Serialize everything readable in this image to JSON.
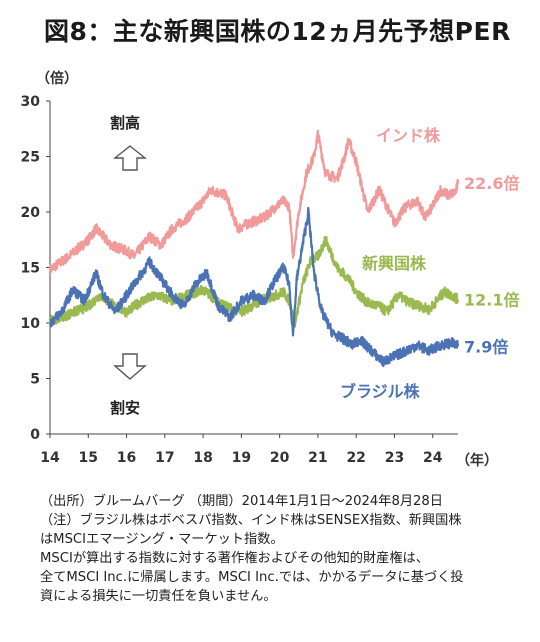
{
  "title": "図8：主な新興国株の12ヵ月先予想PER",
  "ylabel": "（倍）",
  "xunit": "（年）",
  "annotations": {
    "high": "割高",
    "low": "割安"
  },
  "notes": [
    "（出所）ブルームバーグ （期間）2014年1月1日～2024年8月28日",
    "（注）ブラジル株はボベスパ指数、インド株はSENSEX指数、新興国株",
    "はMSCIエマージング・マーケット指数。",
    "MSCIが算出する指数に対する著作権およびその他知的財産権は、",
    "全てMSCI Inc.に帰属します。MSCI Inc.では、かかるデータに基づく投",
    "資による損失に一切責任を負いません。"
  ],
  "chart_data": {
    "type": "line",
    "title": "図8：主な新興国株の12ヵ月先予想PER",
    "ylabel": "（倍）",
    "xlabel": "（年）",
    "ylim": [
      0,
      30
    ],
    "xlim": [
      2014.0,
      2024.66
    ],
    "y_ticks": [
      "0",
      "5",
      "10",
      "15",
      "20",
      "25",
      "30"
    ],
    "x_ticks": [
      "14",
      "15",
      "16",
      "17",
      "18",
      "19",
      "20",
      "21",
      "22",
      "23",
      "24"
    ],
    "grid": false,
    "series": [
      {
        "name": "インド株",
        "end_label": "22.6倍",
        "color": "#f09a9a",
        "x": [
          2014.0,
          2014.5,
          2015.0,
          2015.2,
          2015.6,
          2016.0,
          2016.2,
          2016.6,
          2016.9,
          2017.2,
          2017.6,
          2018.0,
          2018.2,
          2018.6,
          2018.9,
          2019.2,
          2019.6,
          2019.9,
          2020.1,
          2020.25,
          2020.35,
          2020.5,
          2020.7,
          2020.9,
          2021.0,
          2021.2,
          2021.5,
          2021.7,
          2021.8,
          2022.0,
          2022.3,
          2022.6,
          2022.8,
          2023.0,
          2023.3,
          2023.6,
          2023.8,
          2024.0,
          2024.2,
          2024.4,
          2024.6,
          2024.66
        ],
        "y": [
          14.8,
          16.0,
          17.5,
          18.5,
          17.0,
          16.5,
          16.0,
          17.8,
          17.0,
          18.5,
          19.5,
          21.0,
          22.0,
          21.5,
          18.5,
          19.0,
          19.5,
          20.5,
          21.0,
          20.5,
          16.0,
          20.0,
          23.5,
          25.0,
          27.0,
          23.5,
          23.0,
          25.0,
          26.5,
          24.5,
          20.0,
          22.0,
          20.5,
          19.0,
          20.5,
          21.0,
          19.5,
          20.5,
          22.0,
          21.5,
          21.8,
          22.6
        ]
      },
      {
        "name": "新興国株",
        "end_label": "12.1倍",
        "color": "#9ab94e",
        "x": [
          2014.0,
          2014.5,
          2015.0,
          2015.3,
          2015.7,
          2016.0,
          2016.4,
          2016.8,
          2017.2,
          2017.6,
          2018.0,
          2018.3,
          2018.7,
          2019.0,
          2019.5,
          2019.9,
          2020.1,
          2020.25,
          2020.4,
          2020.6,
          2020.8,
          2021.0,
          2021.2,
          2021.5,
          2021.8,
          2022.0,
          2022.3,
          2022.6,
          2022.8,
          2023.1,
          2023.4,
          2023.7,
          2023.9,
          2024.1,
          2024.3,
          2024.5,
          2024.66
        ],
        "y": [
          10.2,
          10.8,
          11.5,
          12.5,
          11.5,
          11.0,
          12.0,
          12.5,
          12.0,
          12.5,
          13.0,
          12.2,
          11.3,
          11.0,
          12.0,
          12.5,
          12.8,
          12.0,
          10.0,
          13.5,
          15.5,
          16.0,
          17.5,
          15.0,
          14.0,
          12.8,
          11.8,
          11.5,
          11.0,
          12.5,
          11.8,
          11.5,
          11.2,
          12.0,
          12.8,
          12.5,
          12.1
        ]
      },
      {
        "name": "ブラジル株",
        "end_label": "7.9倍",
        "color": "#4a72b4",
        "x": [
          2014.0,
          2014.3,
          2014.6,
          2014.9,
          2015.2,
          2015.4,
          2015.7,
          2016.0,
          2016.3,
          2016.6,
          2016.9,
          2017.2,
          2017.5,
          2017.8,
          2018.1,
          2018.4,
          2018.7,
          2019.0,
          2019.3,
          2019.6,
          2019.9,
          2020.1,
          2020.25,
          2020.35,
          2020.45,
          2020.6,
          2020.75,
          2020.9,
          2021.1,
          2021.4,
          2021.7,
          2021.9,
          2022.1,
          2022.4,
          2022.7,
          2023.0,
          2023.3,
          2023.6,
          2023.9,
          2024.2,
          2024.5,
          2024.66
        ],
        "y": [
          10.0,
          11.0,
          13.0,
          12.0,
          14.5,
          12.5,
          11.0,
          12.5,
          14.0,
          15.5,
          14.0,
          12.5,
          11.5,
          13.5,
          14.5,
          11.5,
          10.5,
          12.0,
          12.5,
          12.0,
          14.0,
          15.0,
          13.5,
          9.0,
          14.0,
          17.0,
          20.0,
          14.5,
          11.0,
          9.0,
          8.5,
          8.0,
          8.5,
          7.5,
          6.5,
          7.0,
          7.5,
          8.0,
          7.5,
          8.0,
          8.2,
          7.9
        ]
      }
    ]
  }
}
